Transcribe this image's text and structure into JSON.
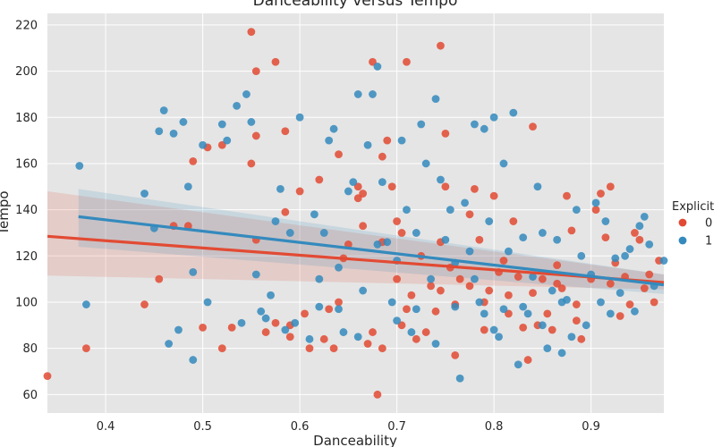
{
  "chart_data": {
    "type": "scatter",
    "title": "Danceability versus Tempo",
    "xlabel": "Danceability",
    "ylabel": "Tempo",
    "xlim": [
      0.34,
      0.975
    ],
    "ylim": [
      52,
      225
    ],
    "xticks": [
      0.4,
      0.5,
      0.6,
      0.7,
      0.8,
      0.9
    ],
    "xtick_labels": [
      "0.4",
      "0.5",
      "0.6",
      "0.7",
      "0.8",
      "0.9"
    ],
    "yticks": [
      60,
      80,
      100,
      120,
      140,
      160,
      180,
      200,
      220
    ],
    "ytick_labels": [
      "60",
      "80",
      "100",
      "120",
      "140",
      "160",
      "180",
      "200",
      "220"
    ],
    "grid": true,
    "legend": {
      "title": "Explicit",
      "placement": "right"
    },
    "series": [
      {
        "name": "0",
        "color": "#e24a33",
        "regression": {
          "x": [
            0.34,
            0.975
          ],
          "y": [
            128.5,
            108.5
          ],
          "ci_low": [
            111.5,
            105.5
          ],
          "ci_high": [
            148.0,
            112.0
          ]
        },
        "points": [
          [
            0.34,
            68
          ],
          [
            0.38,
            80
          ],
          [
            0.44,
            99
          ],
          [
            0.455,
            110
          ],
          [
            0.47,
            133
          ],
          [
            0.485,
            133
          ],
          [
            0.49,
            161
          ],
          [
            0.5,
            89
          ],
          [
            0.505,
            167
          ],
          [
            0.52,
            168
          ],
          [
            0.52,
            80
          ],
          [
            0.53,
            89
          ],
          [
            0.55,
            217
          ],
          [
            0.55,
            160
          ],
          [
            0.555,
            200
          ],
          [
            0.555,
            172
          ],
          [
            0.555,
            127
          ],
          [
            0.565,
            87
          ],
          [
            0.575,
            91
          ],
          [
            0.575,
            204
          ],
          [
            0.585,
            174
          ],
          [
            0.585,
            139
          ],
          [
            0.59,
            90
          ],
          [
            0.59,
            85
          ],
          [
            0.6,
            148
          ],
          [
            0.61,
            80
          ],
          [
            0.62,
            153
          ],
          [
            0.63,
            97
          ],
          [
            0.635,
            80
          ],
          [
            0.64,
            164
          ],
          [
            0.64,
            100
          ],
          [
            0.65,
            125
          ],
          [
            0.66,
            145
          ],
          [
            0.66,
            150
          ],
          [
            0.665,
            147
          ],
          [
            0.67,
            82
          ],
          [
            0.675,
            204
          ],
          [
            0.675,
            87
          ],
          [
            0.68,
            60
          ],
          [
            0.685,
            163
          ],
          [
            0.685,
            126
          ],
          [
            0.69,
            170
          ],
          [
            0.695,
            150
          ],
          [
            0.7,
            135
          ],
          [
            0.7,
            110
          ],
          [
            0.705,
            130
          ],
          [
            0.71,
            204
          ],
          [
            0.71,
            97
          ],
          [
            0.715,
            103
          ],
          [
            0.72,
            84
          ],
          [
            0.725,
            120
          ],
          [
            0.73,
            87
          ],
          [
            0.74,
            96
          ],
          [
            0.745,
            105
          ],
          [
            0.745,
            126
          ],
          [
            0.745,
            211
          ],
          [
            0.75,
            173
          ],
          [
            0.75,
            150
          ],
          [
            0.755,
            115
          ],
          [
            0.76,
            99
          ],
          [
            0.76,
            77
          ],
          [
            0.765,
            110
          ],
          [
            0.775,
            138
          ],
          [
            0.78,
            149
          ],
          [
            0.785,
            127
          ],
          [
            0.79,
            100
          ],
          [
            0.79,
            88
          ],
          [
            0.795,
            105
          ],
          [
            0.8,
            146
          ],
          [
            0.805,
            113
          ],
          [
            0.81,
            118
          ],
          [
            0.815,
            95
          ],
          [
            0.82,
            135
          ],
          [
            0.825,
            111
          ],
          [
            0.83,
            89
          ],
          [
            0.835,
            75
          ],
          [
            0.84,
            176
          ],
          [
            0.84,
            104
          ],
          [
            0.85,
            110
          ],
          [
            0.855,
            95
          ],
          [
            0.86,
            88
          ],
          [
            0.865,
            116
          ],
          [
            0.87,
            106
          ],
          [
            0.875,
            146
          ],
          [
            0.88,
            131
          ],
          [
            0.885,
            99
          ],
          [
            0.89,
            84
          ],
          [
            0.9,
            110
          ],
          [
            0.905,
            140
          ],
          [
            0.91,
            147
          ],
          [
            0.915,
            128
          ],
          [
            0.92,
            150
          ],
          [
            0.925,
            117
          ],
          [
            0.93,
            94
          ],
          [
            0.935,
            111
          ],
          [
            0.94,
            99
          ],
          [
            0.945,
            130
          ],
          [
            0.95,
            127
          ],
          [
            0.955,
            106
          ],
          [
            0.96,
            112
          ],
          [
            0.965,
            100
          ],
          [
            0.97,
            118
          ],
          [
            0.92,
            108
          ],
          [
            0.885,
            92
          ],
          [
            0.865,
            108
          ],
          [
            0.845,
            90
          ],
          [
            0.815,
            103
          ],
          [
            0.775,
            107
          ],
          [
            0.735,
            107
          ],
          [
            0.705,
            90
          ],
          [
            0.685,
            80
          ],
          [
            0.665,
            133
          ],
          [
            0.645,
            119
          ],
          [
            0.625,
            84
          ],
          [
            0.605,
            95
          ]
        ]
      },
      {
        "name": "1",
        "color": "#348abd",
        "regression": {
          "x": [
            0.372,
            0.975
          ],
          "y": [
            137.0,
            107.5
          ],
          "ci_low": [
            124.0,
            103.5
          ],
          "ci_high": [
            149.0,
            112.0
          ]
        },
        "points": [
          [
            0.373,
            159
          ],
          [
            0.38,
            99
          ],
          [
            0.44,
            147
          ],
          [
            0.45,
            132
          ],
          [
            0.455,
            174
          ],
          [
            0.46,
            183
          ],
          [
            0.465,
            82
          ],
          [
            0.47,
            173
          ],
          [
            0.475,
            88
          ],
          [
            0.48,
            178
          ],
          [
            0.485,
            150
          ],
          [
            0.49,
            113
          ],
          [
            0.49,
            75
          ],
          [
            0.5,
            168
          ],
          [
            0.505,
            100
          ],
          [
            0.52,
            177
          ],
          [
            0.525,
            170
          ],
          [
            0.535,
            185
          ],
          [
            0.54,
            91
          ],
          [
            0.545,
            190
          ],
          [
            0.55,
            178
          ],
          [
            0.555,
            112
          ],
          [
            0.56,
            96
          ],
          [
            0.565,
            93
          ],
          [
            0.57,
            103
          ],
          [
            0.575,
            135
          ],
          [
            0.58,
            149
          ],
          [
            0.585,
            88
          ],
          [
            0.59,
            130
          ],
          [
            0.595,
            91
          ],
          [
            0.6,
            180
          ],
          [
            0.61,
            84
          ],
          [
            0.615,
            138
          ],
          [
            0.62,
            110
          ],
          [
            0.625,
            130
          ],
          [
            0.63,
            170
          ],
          [
            0.635,
            175
          ],
          [
            0.64,
            115
          ],
          [
            0.645,
            87
          ],
          [
            0.65,
            148
          ],
          [
            0.655,
            152
          ],
          [
            0.66,
            190
          ],
          [
            0.665,
            105
          ],
          [
            0.67,
            168
          ],
          [
            0.675,
            190
          ],
          [
            0.68,
            202
          ],
          [
            0.685,
            152
          ],
          [
            0.69,
            126
          ],
          [
            0.695,
            100
          ],
          [
            0.7,
            118
          ],
          [
            0.705,
            170
          ],
          [
            0.71,
            140
          ],
          [
            0.715,
            87
          ],
          [
            0.72,
            130
          ],
          [
            0.725,
            177
          ],
          [
            0.73,
            160
          ],
          [
            0.735,
            110
          ],
          [
            0.74,
            188
          ],
          [
            0.745,
            153
          ],
          [
            0.75,
            127
          ],
          [
            0.755,
            140
          ],
          [
            0.76,
            117
          ],
          [
            0.765,
            67
          ],
          [
            0.77,
            143
          ],
          [
            0.775,
            122
          ],
          [
            0.78,
            177
          ],
          [
            0.785,
            100
          ],
          [
            0.79,
            175
          ],
          [
            0.795,
            135
          ],
          [
            0.8,
            180
          ],
          [
            0.805,
            85
          ],
          [
            0.81,
            160
          ],
          [
            0.815,
            122
          ],
          [
            0.82,
            182
          ],
          [
            0.825,
            73
          ],
          [
            0.83,
            128
          ],
          [
            0.835,
            95
          ],
          [
            0.84,
            111
          ],
          [
            0.845,
            150
          ],
          [
            0.85,
            130
          ],
          [
            0.855,
            80
          ],
          [
            0.86,
            105
          ],
          [
            0.865,
            127
          ],
          [
            0.87,
            78
          ],
          [
            0.875,
            101
          ],
          [
            0.88,
            85
          ],
          [
            0.885,
            140
          ],
          [
            0.89,
            120
          ],
          [
            0.895,
            90
          ],
          [
            0.9,
            112
          ],
          [
            0.905,
            143
          ],
          [
            0.91,
            100
          ],
          [
            0.915,
            135
          ],
          [
            0.92,
            95
          ],
          [
            0.925,
            119
          ],
          [
            0.93,
            104
          ],
          [
            0.935,
            120
          ],
          [
            0.94,
            123
          ],
          [
            0.945,
            96
          ],
          [
            0.95,
            133
          ],
          [
            0.955,
            137
          ],
          [
            0.96,
            125
          ],
          [
            0.965,
            107
          ],
          [
            0.975,
            118
          ],
          [
            0.72,
            97
          ],
          [
            0.7,
            92
          ],
          [
            0.76,
            98
          ],
          [
            0.79,
            95
          ],
          [
            0.81,
            97
          ],
          [
            0.83,
            98
          ],
          [
            0.85,
            90
          ],
          [
            0.87,
            100
          ],
          [
            0.64,
            97
          ],
          [
            0.66,
            85
          ],
          [
            0.62,
            98
          ],
          [
            0.68,
            125
          ],
          [
            0.74,
            82
          ],
          [
            0.78,
            110
          ],
          [
            0.8,
            88
          ]
        ]
      }
    ]
  }
}
